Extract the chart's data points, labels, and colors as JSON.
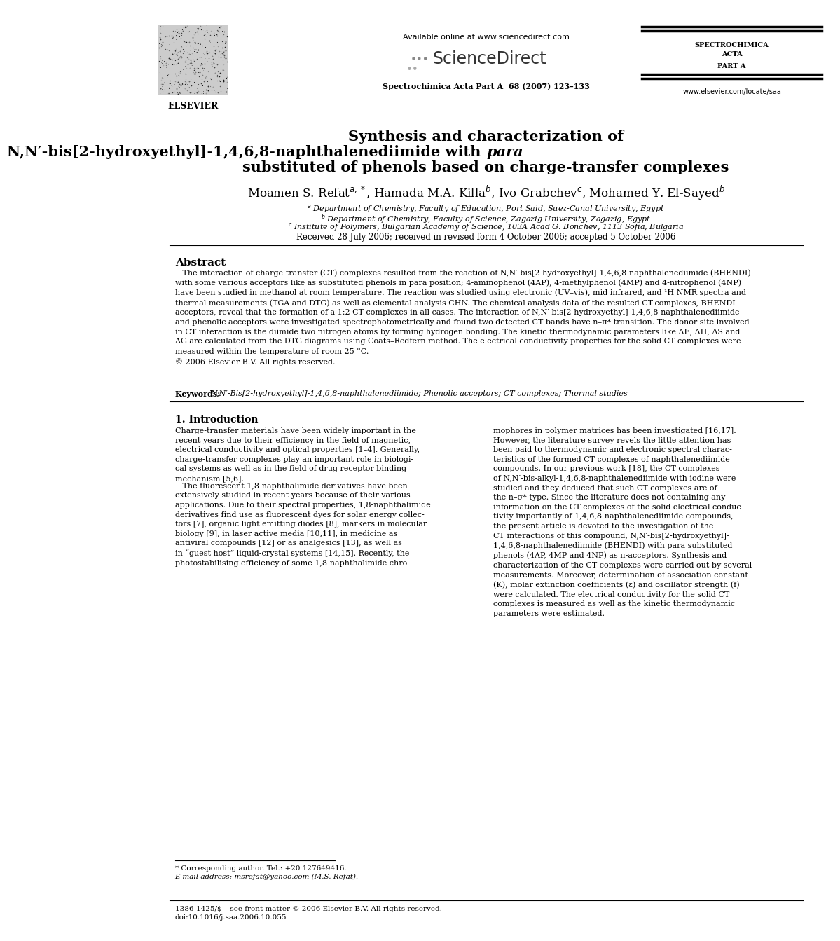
{
  "bg_color": "#ffffff",
  "available_online": "Available online at www.sciencedirect.com",
  "sciencedirect": "ScienceDirect",
  "journal_sub": "Spectrochimica Acta Part A  68 (2007) 123–133",
  "elsevier_text": "ELSEVIER",
  "spectrochimica_lines": [
    "SPECTROCHIMICA",
    "ACTA",
    "PART A"
  ],
  "website": "www.elsevier.com/locate/saa",
  "title_line1": "Synthesis and characterization of",
  "title_line2a": "N,N′-bis[2-hydroxyethyl]-1,4,6,8-naphthalenediimide with ",
  "title_line2b": "para",
  "title_line3": "substituted of phenols based on charge-transfer complexes",
  "author_line": "Moamen S. Refat$^{a,*}$, Hamada M.A. Killa$^{b}$, Ivo Grabchev$^{c}$, Mohamed Y. El-Sayed$^{b}$",
  "affil1": "$^{a}$ Department of Chemistry, Faculty of Education, Port Said, Suez-Canal University, Egypt",
  "affil2": "$^{b}$ Department of Chemistry, Faculty of Science, Zagazig University, Zagazig, Egypt",
  "affil3": "$^{c}$ Institute of Polymers, Bulgarian Academy of Science, 103A Acad G. Bonchev, 1113 Sofia, Bulgaria",
  "received": "Received 28 July 2006; received in revised form 4 October 2006; accepted 5 October 2006",
  "abstract_title": "Abstract",
  "abstract_body": "   The interaction of charge-transfer (CT) complexes resulted from the reaction of N,N′-bis[2-hydroxyethyl]-1,4,6,8-naphthalenediimide (BHENDI)\nwith some various acceptors like as substituted phenols in para position; 4-aminophenol (4AP), 4-methylphenol (4MP) and 4-nitrophenol (4NP)\nhave been studied in methanol at room temperature. The reaction was studied using electronic (UV–vis), mid infrared, and ¹H NMR spectra and\nthermal measurements (TGA and DTG) as well as elemental analysis CHN. The chemical analysis data of the resulted CT-complexes, BHENDI-\nacceptors, reveal that the formation of a 1:2 CT complexes in all cases. The interaction of N,N′-bis[2-hydroxyethyl]-1,4,6,8-naphthalenediimide\nand phenolic acceptors were investigated spectrophotometrically and found two detected CT bands have n–π* transition. The donor site involved\nin CT interaction is the diimide two nitrogen atoms by forming hydrogen bonding. The kinetic thermodynamic parameters like ΔE, ΔH, ΔS and\nΔG are calculated from the DTG diagrams using Coats–Redfern method. The electrical conductivity properties for the solid CT complexes were\nmeasured within the temperature of room 25 °C.\n© 2006 Elsevier B.V. All rights reserved.",
  "kw_label": "Keywords: ",
  "kw_text": "N,N′-Bis[2-hydroxyethyl]-1,4,6,8-naphthalenediimide; Phenolic acceptors; CT complexes; Thermal studies",
  "section1": "1. Introduction",
  "col1_para1": "Charge-transfer materials have been widely important in the\nrecent years due to their efficiency in the field of magnetic,\nelectrical conductivity and optical properties [1–4]. Generally,\ncharge-transfer complexes play an important role in biologi-\ncal systems as well as in the field of drug receptor binding\nmechanism [5,6].",
  "col1_para2": "   The fluorescent 1,8-naphthalimide derivatives have been\nextensively studied in recent years because of their various\napplications. Due to their spectral properties, 1,8-naphthalimide\nderivatives find use as fluorescent dyes for solar energy collec-\ntors [7], organic light emitting diodes [8], markers in molecular\nbiology [9], in laser active media [10,11], in medicine as\nantiviral compounds [12] or as analgesics [13], as well as\nin “guest host” liquid-crystal systems [14,15]. Recently, the\nphotostabilising efficiency of some 1,8-naphthalimide chro-",
  "col2_text": "mophores in polymer matrices has been investigated [16,17].\nHowever, the literature survey revels the little attention has\nbeen paid to thermodynamic and electronic spectral charac-\nteristics of the formed CT complexes of naphthalenediimide\ncompounds. In our previous work [18], the CT complexes\nof N,N′-bis-alkyl-1,4,6,8-naphthalenediimide with iodine were\nstudied and they deduced that such CT complexes are of\nthe n–σ* type. Since the literature does not containing any\ninformation on the CT complexes of the solid electrical conduc-\ntivity importantly of 1,4,6,8-naphthalenediimide compounds,\nthe present article is devoted to the investigation of the\nCT interactions of this compound, N,N′-bis[2-hydroxyethyl]-\n1,4,6,8-naphthalenediimide (BHENDI) with para substituted\nphenols (4AP, 4MP and 4NP) as π-acceptors. Synthesis and\ncharacterization of the CT complexes were carried out by several\nmeasurements. Moreover, determination of association constant\n(K), molar extinction coefficients (ε) and oscillator strength (f)\nwere calculated. The electrical conductivity for the solid CT\ncomplexes is measured as well as the kinetic thermodynamic\nparameters were estimated.",
  "footnote1": "* Corresponding author. Tel.: +20 127649416.",
  "footnote2": "E-mail address: msrefat@yahoo.com (M.S. Refat).",
  "footer1": "1386-1425/$ – see front matter © 2006 Elsevier B.V. All rights reserved.",
  "footer2": "doi:10.1016/j.saa.2006.10.055"
}
